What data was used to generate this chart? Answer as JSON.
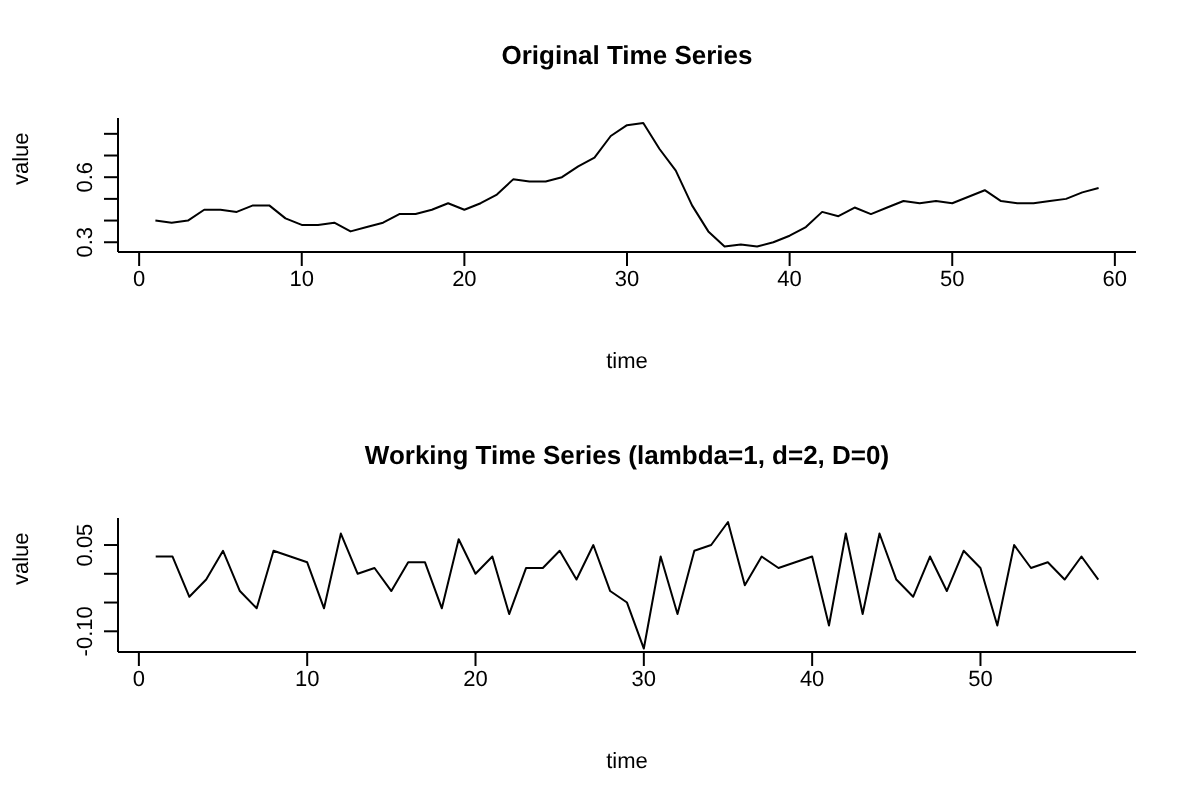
{
  "chart_data": [
    {
      "type": "line",
      "title": "Original Time Series",
      "xlabel": "time",
      "ylabel": "value",
      "x": [
        1,
        2,
        3,
        4,
        5,
        6,
        7,
        8,
        9,
        10,
        11,
        12,
        13,
        14,
        15,
        16,
        17,
        18,
        19,
        20,
        21,
        22,
        23,
        24,
        25,
        26,
        27,
        28,
        29,
        30,
        31,
        32,
        33,
        34,
        35,
        36,
        37,
        38,
        39,
        40,
        41,
        42,
        43,
        44,
        45,
        46,
        47,
        48,
        49,
        50,
        51,
        52,
        53,
        54,
        55,
        56,
        57,
        58,
        59
      ],
      "series": [
        {
          "color": "#000000",
          "values": [
            0.4,
            0.39,
            0.4,
            0.45,
            0.45,
            0.44,
            0.47,
            0.47,
            0.41,
            0.38,
            0.38,
            0.39,
            0.35,
            0.37,
            0.39,
            0.43,
            0.43,
            0.45,
            0.48,
            0.45,
            0.48,
            0.52,
            0.59,
            0.58,
            0.58,
            0.6,
            0.65,
            0.69,
            0.79,
            0.84,
            0.85,
            0.73,
            0.63,
            0.47,
            0.35,
            0.28,
            0.29,
            0.28,
            0.3,
            0.33,
            0.37,
            0.44,
            0.42,
            0.46,
            0.43,
            0.46,
            0.49,
            0.48,
            0.49,
            0.48,
            0.51,
            0.54,
            0.49,
            0.48,
            0.48,
            0.49,
            0.5,
            0.53,
            0.55
          ]
        }
      ],
      "xlim": [
        -1.3,
        61.3
      ],
      "xticks": [
        0,
        10,
        20,
        30,
        40,
        50,
        60
      ],
      "ylim": [
        0.255,
        0.873
      ],
      "yticks": [
        0.3,
        {
          "value": 0.4,
          "label": null
        },
        {
          "value": 0.5,
          "label": null
        },
        0.6,
        {
          "value": 0.7,
          "label": null
        },
        {
          "value": 0.8,
          "label": null
        }
      ],
      "grid": false,
      "legend": false,
      "marker": "none",
      "line_style": "solid"
    },
    {
      "type": "line",
      "title": "Working Time Series (lambda=1, d=2, D=0)",
      "xlabel": "time",
      "ylabel": "value",
      "x": [
        1,
        2,
        3,
        4,
        5,
        6,
        7,
        8,
        9,
        10,
        11,
        12,
        13,
        14,
        15,
        16,
        17,
        18,
        19,
        20,
        21,
        22,
        23,
        24,
        25,
        26,
        27,
        28,
        29,
        30,
        31,
        32,
        33,
        34,
        35,
        36,
        37,
        38,
        39,
        40,
        41,
        42,
        43,
        44,
        45,
        46,
        47,
        48,
        49,
        50,
        51,
        52,
        53,
        54,
        55,
        56,
        57
      ],
      "series": [
        {
          "color": "#000000",
          "values": [
            0.03,
            0.03,
            -0.04,
            -0.01,
            0.04,
            -0.03,
            -0.06,
            0.04,
            0.03,
            0.02,
            -0.06,
            0.07,
            0.0,
            0.01,
            -0.03,
            0.02,
            0.02,
            -0.06,
            0.06,
            0.0,
            0.03,
            -0.07,
            0.01,
            0.01,
            0.04,
            -0.01,
            0.05,
            -0.03,
            -0.05,
            -0.13,
            0.03,
            -0.07,
            0.04,
            0.05,
            0.09,
            -0.02,
            0.03,
            0.01,
            0.02,
            0.03,
            -0.09,
            0.07,
            -0.07,
            0.07,
            -0.01,
            -0.04,
            0.03,
            -0.03,
            0.04,
            0.01,
            -0.09,
            0.05,
            0.01,
            0.02,
            -0.01,
            0.03,
            -0.01
          ]
        }
      ],
      "xlim": [
        -1.24,
        59.24
      ],
      "xticks": [
        0,
        10,
        20,
        30,
        40,
        50
      ],
      "ylim": [
        -0.136,
        0.097
      ],
      "yticks": [
        {
          "value": 0.05,
          "label": "0.05"
        },
        {
          "value": 0.0,
          "label": null
        },
        {
          "value": -0.05,
          "label": null
        },
        {
          "value": -0.1,
          "label": "-0.10"
        }
      ],
      "grid": false,
      "legend": false,
      "marker": "none",
      "line_style": "solid"
    }
  ]
}
